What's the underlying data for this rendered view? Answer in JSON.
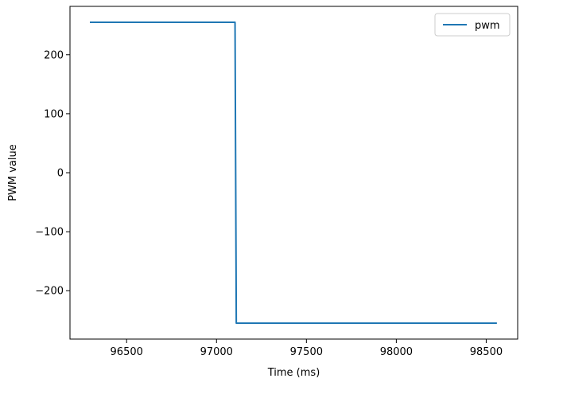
{
  "chart_data": {
    "type": "line",
    "xlabel": "Time (ms)",
    "ylabel": "PWM value",
    "xlim": [
      96185,
      98675
    ],
    "ylim": [
      -282,
      282
    ],
    "xticks": [
      96500,
      97000,
      97500,
      98000,
      98500
    ],
    "xtick_labels": [
      "96500",
      "97000",
      "97500",
      "98000",
      "98500"
    ],
    "yticks": [
      -200,
      -100,
      0,
      100,
      200
    ],
    "ytick_labels": [
      "−200",
      "−100",
      "0",
      "100",
      "200"
    ],
    "grid": false,
    "legend_position": "upper right",
    "series": [
      {
        "name": "pwm",
        "color": "#1f77b4",
        "x": [
          96300,
          97103,
          97110,
          98555
        ],
        "y": [
          255,
          255,
          -255,
          -255
        ]
      }
    ]
  }
}
